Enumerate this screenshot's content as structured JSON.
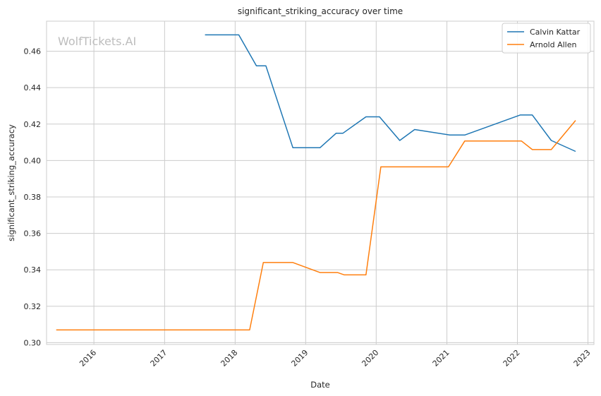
{
  "chart_data": {
    "type": "line",
    "title": "significant_striking_accuracy over time",
    "xlabel": "Date",
    "ylabel": "significant_striking_accuracy",
    "watermark": "WolfTickets.AI",
    "x_ticks": [
      "2016",
      "2017",
      "2018",
      "2019",
      "2020",
      "2021",
      "2022",
      "2023"
    ],
    "y_ticks": [
      "0.30",
      "0.32",
      "0.34",
      "0.36",
      "0.38",
      "0.40",
      "0.42",
      "0.44",
      "0.46"
    ],
    "xlim": [
      "2015-05-01",
      "2023-02-01"
    ],
    "ylim": [
      0.299,
      0.4765
    ],
    "grid": true,
    "legend_position": "top-right",
    "series": [
      {
        "name": "Calvin Kattar",
        "color": "#1f77b4",
        "points": [
          [
            "2017-07-29",
            0.469
          ],
          [
            "2018-01-20",
            0.469
          ],
          [
            "2018-04-21",
            0.452
          ],
          [
            "2018-06-09",
            0.452
          ],
          [
            "2018-10-27",
            0.407
          ],
          [
            "2019-03-16",
            0.407
          ],
          [
            "2019-06-08",
            0.415
          ],
          [
            "2019-07-13",
            0.415
          ],
          [
            "2019-11-09",
            0.424
          ],
          [
            "2020-01-18",
            0.424
          ],
          [
            "2020-05-02",
            0.411
          ],
          [
            "2020-07-18",
            0.417
          ],
          [
            "2021-01-16",
            0.414
          ],
          [
            "2021-04-03",
            0.414
          ],
          [
            "2022-01-15",
            0.425
          ],
          [
            "2022-03-19",
            0.425
          ],
          [
            "2022-06-25",
            0.411
          ],
          [
            "2022-10-29",
            0.405
          ]
        ]
      },
      {
        "name": "Arnold Allen",
        "color": "#ff7f0e",
        "points": [
          [
            "2015-06-20",
            0.307
          ],
          [
            "2018-03-17",
            0.307
          ],
          [
            "2018-05-27",
            0.344
          ],
          [
            "2018-10-27",
            0.344
          ],
          [
            "2019-03-16",
            0.3385
          ],
          [
            "2019-06-15",
            0.3385
          ],
          [
            "2019-07-20",
            0.3372
          ],
          [
            "2019-11-09",
            0.3372
          ],
          [
            "2020-01-25",
            0.3965
          ],
          [
            "2021-01-09",
            0.3965
          ],
          [
            "2021-04-03",
            0.4107
          ],
          [
            "2022-01-22",
            0.4107
          ],
          [
            "2022-03-19",
            0.406
          ],
          [
            "2022-06-25",
            0.406
          ],
          [
            "2022-10-29",
            0.422
          ]
        ]
      }
    ]
  }
}
